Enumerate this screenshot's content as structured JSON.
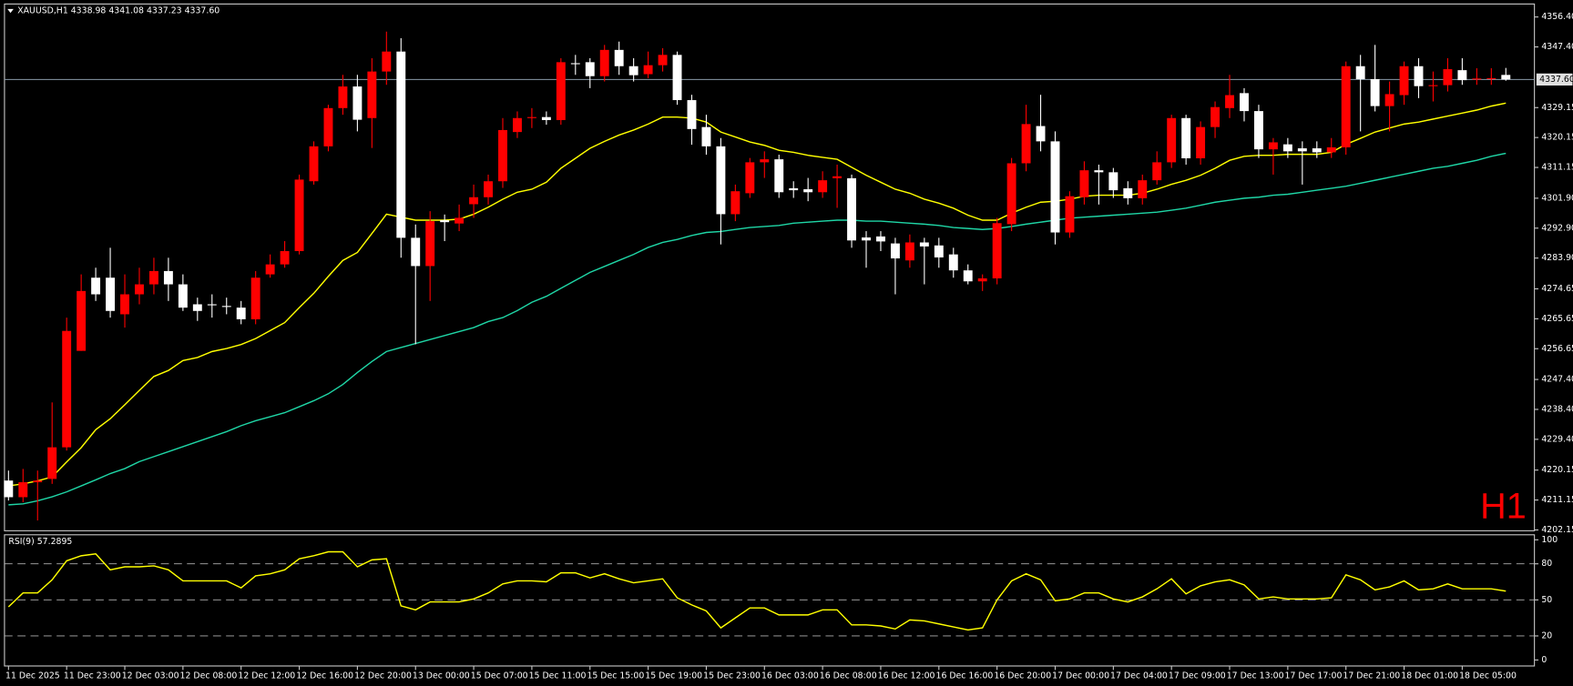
{
  "chart_data": [
    {
      "type": "candlestick",
      "title": "XAUUSD,H1 4338.98 4341.08 4337.23 4337.60",
      "annotation": "H1",
      "up_color": "#ff0000",
      "down_color": "#ffffff",
      "categories": [
        "11 Dec 2025",
        null,
        null,
        null,
        "11 Dec 23:00",
        null,
        null,
        null,
        "12 Dec 03:00",
        null,
        null,
        null,
        "12 Dec 08:00",
        null,
        null,
        null,
        "12 Dec 12:00",
        null,
        null,
        null,
        "12 Dec 16:00",
        null,
        null,
        null,
        "12 Dec 20:00",
        null,
        null,
        null,
        "13 Dec 00:00",
        null,
        null,
        null,
        "15 Dec 07:00",
        null,
        null,
        null,
        "15 Dec 11:00",
        null,
        null,
        null,
        "15 Dec 15:00",
        null,
        null,
        null,
        "15 Dec 19:00",
        null,
        null,
        null,
        "15 Dec 23:00",
        null,
        null,
        null,
        "16 Dec 03:00",
        null,
        null,
        null,
        "16 Dec 08:00",
        null,
        null,
        null,
        "16 Dec 12:00",
        null,
        null,
        null,
        "16 Dec 16:00",
        null,
        null,
        null,
        "16 Dec 20:00",
        null,
        null,
        null,
        "17 Dec 00:00",
        null,
        null,
        null,
        "17 Dec 04:00",
        null,
        null,
        null,
        "17 Dec 09:00",
        null,
        null,
        null,
        "17 Dec 13:00",
        null,
        null,
        null,
        "17 Dec 17:00",
        null,
        null,
        null,
        "17 Dec 21:00",
        null,
        null,
        null,
        "18 Dec 01:00",
        null,
        null,
        null,
        "18 Dec 05:00",
        null,
        null,
        null
      ],
      "open": [
        4217,
        4212,
        4216.5,
        4217.5,
        4227,
        4256,
        4278,
        4278,
        4267,
        4273,
        4276,
        4280,
        4276,
        4270,
        4270,
        4269.5,
        4269,
        4265.5,
        4279,
        4282,
        4286,
        4307,
        4317.5,
        4329,
        4335.5,
        4326,
        4340,
        4346,
        4290,
        4281.5,
        4295.3,
        4294.3,
        4300.1,
        4302.2,
        4307,
        4321.8,
        4326,
        4326.3,
        4325.4,
        4342.5,
        4342.8,
        4338.6,
        4346.5,
        4341.6,
        4339.2,
        4341.9,
        4345,
        4331.4,
        4323.3,
        4317.5,
        4297.1,
        4303.4,
        4312.7,
        4313.6,
        4304.9,
        4304.6,
        4303.7,
        4307.9,
        4307.9,
        4290.1,
        4290.4,
        4288.3,
        4283.2,
        4288.6,
        4287.7,
        4285,
        4280.2,
        4276.9,
        4277.8,
        4294.1,
        4312.4,
        4323.6,
        4319,
        4291.6,
        4302.2,
        4310.3,
        4309.7,
        4304.9,
        4301.9,
        4307.3,
        4312.7,
        4326,
        4313.9,
        4323.3,
        4329,
        4333.5,
        4328.1,
        4316.6,
        4318.1,
        4316.9,
        4316.9,
        4315.7,
        4317.2,
        4341.6,
        4337.7,
        4329.6,
        4332.9,
        4341.6,
        4335.6,
        4335.9,
        4340.4,
        4337.7,
        4337.7,
        4338.98
      ],
      "high": [
        4220,
        4220.5,
        4220,
        4240.5,
        4266,
        4279,
        4281,
        4287,
        4279,
        4281,
        4284,
        4284,
        4279,
        4272,
        4273,
        4272,
        4271,
        4280,
        4285,
        4289,
        4309,
        4319,
        4330,
        4339,
        4339,
        4344,
        4352,
        4350,
        4294,
        4298,
        4297,
        4300,
        4306,
        4309,
        4326,
        4328,
        4329,
        4328,
        4344,
        4345,
        4344,
        4348,
        4349,
        4344,
        4346,
        4347,
        4346,
        4333,
        4327,
        4320,
        4306,
        4314,
        4316,
        4315,
        4307,
        4308,
        4310,
        4312,
        4309,
        4292,
        4292,
        4290,
        4291,
        4290,
        4290,
        4287,
        4282,
        4279,
        4296,
        4314,
        4330,
        4333,
        4322,
        4304,
        4313,
        4312,
        4311,
        4307,
        4309,
        4316,
        4327,
        4327,
        4325,
        4331,
        4339,
        4335,
        4330,
        4320,
        4320,
        4319,
        4319,
        4320,
        4343,
        4345,
        4348,
        4337,
        4343,
        4344,
        4340,
        4344,
        4344,
        4341,
        4341,
        4341.08
      ],
      "low": [
        4211,
        4210.5,
        4205,
        4216,
        4226,
        4256,
        4271,
        4266,
        4263,
        4270,
        4273,
        4271,
        4268,
        4265,
        4266,
        4267,
        4264,
        4264,
        4278,
        4281,
        4285,
        4306,
        4316,
        4327,
        4322,
        4317,
        4336,
        4284,
        4258,
        4271,
        4289,
        4292,
        4296,
        4300,
        4305,
        4320,
        4323,
        4324,
        4324,
        4339,
        4335,
        4337,
        4339,
        4337,
        4338,
        4340,
        4330,
        4318,
        4315,
        4288,
        4295,
        4302,
        4308,
        4302,
        4302,
        4301,
        4302,
        4299,
        4287,
        4281,
        4286,
        4273,
        4281,
        4276,
        4281,
        4278,
        4276,
        4274,
        4276,
        4292,
        4310,
        4316,
        4288,
        4290,
        4300,
        4300,
        4302,
        4300,
        4300,
        4306,
        4311,
        4312,
        4312,
        4320,
        4326,
        4325,
        4314,
        4309,
        4314,
        4306,
        4314,
        4314,
        4315,
        4322,
        4328,
        4322,
        4330,
        4332,
        4331,
        4334,
        4336,
        4336,
        4336,
        4337.23
      ],
      "close": [
        4212,
        4216.5,
        4217,
        4227,
        4262,
        4274,
        4273,
        4268,
        4273,
        4276,
        4280,
        4276,
        4269,
        4268,
        4270,
        4269.5,
        4265.5,
        4278,
        4282,
        4286,
        4307.5,
        4317.5,
        4329,
        4335.5,
        4325.5,
        4340,
        4346,
        4290,
        4281.5,
        4295,
        4294.7,
        4296,
        4302.2,
        4307,
        4322.4,
        4326,
        4326.3,
        4325.4,
        4342.8,
        4342.2,
        4338.6,
        4346.5,
        4341.6,
        4338.9,
        4341.9,
        4345,
        4331.4,
        4322.7,
        4317.5,
        4297.1,
        4304,
        4312.7,
        4313.6,
        4303.7,
        4304.3,
        4303.7,
        4307.3,
        4308.5,
        4289.2,
        4289.2,
        4288.9,
        4283.8,
        4288.6,
        4287.4,
        4284.1,
        4280.2,
        4276.9,
        4277.8,
        4294.4,
        4312.4,
        4324.2,
        4319,
        4291.6,
        4302.5,
        4310.3,
        4309.7,
        4304.3,
        4301.9,
        4307.3,
        4312.7,
        4326,
        4313.9,
        4323.3,
        4329.3,
        4332.9,
        4328.1,
        4316.6,
        4318.7,
        4316,
        4316,
        4315.7,
        4317.2,
        4341.6,
        4337.7,
        4329.6,
        4333.2,
        4341.6,
        4335.6,
        4335.9,
        4340.7,
        4337.4,
        4337.9,
        4338,
        4337.6
      ],
      "lines": [
        {
          "color": "#ffff00",
          "values": [
            4215.4,
            4216.0,
            4216.9,
            4218.1,
            4222.6,
            4226.9,
            4232.3,
            4235.6,
            4239.8,
            4244.1,
            4248.3,
            4250.1,
            4253.1,
            4254.0,
            4255.8,
            4256.7,
            4257.9,
            4259.7,
            4262.1,
            4264.5,
            4269.0,
            4273.3,
            4278.4,
            4283.2,
            4285.6,
            4291.3,
            4297.1,
            4296.2,
            4295.3,
            4295.3,
            4295.3,
            4295.6,
            4297.1,
            4299.2,
            4301.6,
            4303.7,
            4304.6,
            4306.7,
            4310.9,
            4313.9,
            4316.9,
            4319.0,
            4320.9,
            4322.4,
            4324.2,
            4326.3,
            4326.3,
            4326.0,
            4324.8,
            4321.8,
            4320.3,
            4318.8,
            4317.8,
            4316.3,
            4315.7,
            4314.8,
            4314.2,
            4313.6,
            4311.2,
            4308.8,
            4306.7,
            4304.6,
            4303.4,
            4301.6,
            4300.4,
            4298.9,
            4296.8,
            4295.3,
            4295.3,
            4297.4,
            4299.2,
            4300.7,
            4301.0,
            4301.6,
            4302.5,
            4302.8,
            4302.8,
            4302.8,
            4303.4,
            4304.6,
            4306.1,
            4307.3,
            4308.8,
            4310.9,
            4313.3,
            4314.5,
            4314.8,
            4314.8,
            4315.1,
            4315.1,
            4315.1,
            4315.7,
            4318.1,
            4319.9,
            4321.8,
            4323.0,
            4324.2,
            4324.8,
            4325.7,
            4326.6,
            4327.5,
            4328.4,
            4329.6,
            4330.5
          ]
        },
        {
          "color": "#1fd6a6",
          "values": [
            4209.7,
            4210.0,
            4210.9,
            4212.1,
            4213.6,
            4215.4,
            4217.2,
            4219.1,
            4220.6,
            4222.7,
            4224.2,
            4225.7,
            4227.2,
            4228.7,
            4230.2,
            4231.7,
            4233.5,
            4235.0,
            4236.2,
            4237.4,
            4239.2,
            4241.0,
            4243.1,
            4245.9,
            4249.5,
            4252.8,
            4255.8,
            4257.0,
            4258.2,
            4259.4,
            4260.6,
            4261.8,
            4263.0,
            4264.8,
            4266.0,
            4268.1,
            4270.6,
            4272.4,
            4274.8,
            4277.2,
            4279.6,
            4281.4,
            4283.2,
            4285.0,
            4287.1,
            4288.6,
            4289.5,
            4290.7,
            4291.6,
            4291.9,
            4292.5,
            4293.1,
            4293.4,
            4293.7,
            4294.4,
            4294.7,
            4295.0,
            4295.3,
            4295.3,
            4295.0,
            4295.0,
            4294.7,
            4294.4,
            4294.1,
            4293.7,
            4293.1,
            4292.8,
            4292.5,
            4292.8,
            4293.4,
            4294.1,
            4294.7,
            4295.3,
            4295.9,
            4296.2,
            4296.5,
            4296.8,
            4297.1,
            4297.4,
            4297.7,
            4298.3,
            4298.9,
            4299.8,
            4300.7,
            4301.3,
            4301.9,
            4302.2,
            4302.8,
            4303.1,
            4303.7,
            4304.3,
            4304.9,
            4305.5,
            4306.4,
            4307.3,
            4308.2,
            4309.1,
            4310.0,
            4310.9,
            4311.5,
            4312.4,
            4313.3,
            4314.5,
            4315.4
          ]
        }
      ],
      "price_line": {
        "value": 4337.6,
        "label": "4337.60"
      },
      "ylim": [
        4201.9,
        4360.3
      ],
      "yticks": [
        {
          "value": 4356.4,
          "label": "4356.40"
        },
        {
          "value": 4347.4,
          "label": "4347.40"
        },
        4329.15,
        4320.15,
        4311.15,
        {
          "value": 4301.9,
          "label": "4301.90"
        },
        {
          "value": 4292.9,
          "label": "4292.90"
        },
        {
          "value": 4283.9,
          "label": "4283.90"
        },
        4274.65,
        4265.65,
        4256.65,
        {
          "value": 4247.4,
          "label": "4247.40"
        },
        {
          "value": 4238.4,
          "label": "4238.40"
        },
        {
          "value": 4229.4,
          "label": "4229.40"
        },
        4220.15,
        4211.15,
        4202.15
      ]
    },
    {
      "type": "line",
      "title": "RSI(9) 57.2895",
      "color": "#ffff00",
      "values": [
        44.2,
        55.8,
        55.8,
        66.7,
        82.5,
        86.7,
        88.3,
        75.0,
        77.5,
        77.5,
        78.3,
        75.0,
        65.8,
        65.8,
        65.8,
        65.8,
        60.0,
        70.0,
        71.7,
        75.0,
        84.2,
        86.7,
        90.0,
        90.0,
        77.5,
        83.3,
        84.2,
        45.0,
        41.7,
        48.3,
        48.3,
        48.3,
        50.8,
        55.8,
        63.3,
        65.8,
        65.8,
        65.0,
        72.5,
        72.5,
        68.3,
        71.7,
        67.5,
        64.2,
        65.8,
        67.5,
        51.7,
        45.8,
        40.8,
        26.7,
        35.0,
        43.3,
        43.3,
        37.5,
        37.5,
        37.5,
        41.7,
        41.7,
        29.2,
        29.2,
        28.3,
        25.8,
        33.3,
        32.5,
        30.0,
        27.5,
        25.0,
        26.7,
        50.0,
        65.8,
        71.7,
        66.7,
        49.2,
        50.8,
        55.8,
        55.8,
        50.8,
        48.3,
        52.5,
        59.2,
        67.5,
        55.0,
        61.7,
        65.0,
        66.7,
        62.5,
        50.8,
        52.5,
        50.8,
        50.8,
        50.8,
        51.7,
        70.8,
        66.7,
        58.3,
        60.8,
        65.8,
        58.3,
        59.2,
        63.3,
        59.2,
        59.2,
        59.2,
        57.2895
      ],
      "levels": [
        80,
        50,
        20
      ],
      "ylim": [
        0,
        100
      ],
      "yticks": [
        100,
        80,
        50,
        20,
        0
      ]
    }
  ]
}
